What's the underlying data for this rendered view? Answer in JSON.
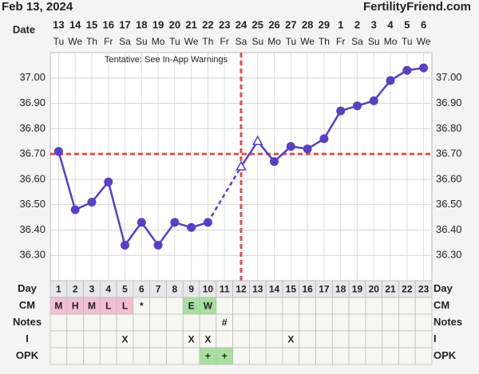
{
  "chart_data": {
    "type": "line",
    "title": "Feb 13, 2024",
    "brand": "FertilityFriend.com",
    "date_label": "Date",
    "categories": [
      "13",
      "14",
      "15",
      "16",
      "17",
      "18",
      "19",
      "20",
      "21",
      "22",
      "23",
      "24",
      "25",
      "26",
      "27",
      "28",
      "29",
      "1",
      "2",
      "3",
      "4",
      "5",
      "6"
    ],
    "weekdays": [
      "Tu",
      "We",
      "Th",
      "Fr",
      "Sa",
      "Su",
      "Mo",
      "Tu",
      "We",
      "Th",
      "Fr",
      "Sa",
      "Su",
      "Mo",
      "Tu",
      "We",
      "Th",
      "Fr",
      "Sa",
      "Su",
      "Mo",
      "Tu",
      "We"
    ],
    "values": [
      36.71,
      36.48,
      36.51,
      36.59,
      36.34,
      36.43,
      36.34,
      36.43,
      36.41,
      36.43,
      null,
      36.65,
      36.75,
      36.67,
      36.73,
      36.72,
      36.76,
      36.87,
      36.89,
      36.91,
      36.99,
      37.03,
      37.04
    ],
    "color": "#5a3fc0",
    "open_markers": [
      11,
      12
    ],
    "gaps_dashed": true,
    "coverline": 36.7,
    "ovulation_index": 11,
    "marker_line_color": "#d9534f",
    "annotation": "Tentative: See In-App Warnings",
    "ylim": [
      36.2,
      37.1
    ],
    "yticks": [
      {
        "value": 36.3,
        "label": "36.30"
      },
      {
        "value": 36.4,
        "label": "36.40"
      },
      {
        "value": 36.5,
        "label": "36.50"
      },
      {
        "value": 36.6,
        "label": "36.60"
      },
      {
        "value": 36.7,
        "label": "36.70"
      },
      {
        "value": 36.8,
        "label": "36.80"
      },
      {
        "value": 36.9,
        "label": "36.90"
      },
      {
        "value": 37,
        "label": "37.00"
      }
    ],
    "grid": true
  },
  "table": {
    "row_labels": [
      "Day",
      "CM",
      "Notes",
      "I",
      "OPK"
    ],
    "rows": [
      [
        "1",
        "2",
        "3",
        "4",
        "5",
        "6",
        "7",
        "8",
        "9",
        "10",
        "11",
        "12",
        "13",
        "14",
        "15",
        "16",
        "17",
        "18",
        "19",
        "20",
        "21",
        "22",
        "23"
      ],
      [
        "M",
        "H",
        "M",
        "L",
        "L",
        "*",
        null,
        null,
        "E",
        "W",
        null,
        null,
        null,
        null,
        null,
        null,
        null,
        null,
        null,
        null,
        null,
        null,
        null
      ],
      [
        null,
        null,
        null,
        null,
        null,
        null,
        null,
        null,
        null,
        null,
        "#",
        null,
        null,
        null,
        null,
        null,
        null,
        null,
        null,
        null,
        null,
        null,
        null
      ],
      [
        null,
        null,
        null,
        null,
        "X",
        null,
        null,
        null,
        "X",
        "X",
        null,
        null,
        null,
        null,
        "X",
        null,
        null,
        null,
        null,
        null,
        null,
        null,
        null
      ],
      [
        null,
        null,
        null,
        null,
        null,
        null,
        null,
        null,
        null,
        "+",
        "+",
        null,
        null,
        null,
        null,
        null,
        null,
        null,
        null,
        null,
        null,
        null,
        null
      ]
    ],
    "cell_colors": {
      "M": "#f2bfd5",
      "H": "#f2bfd5",
      "L": "#f2bfd5",
      "E": "#a8e0a0",
      "W": "#a8e0a0",
      "+": "#a8e0a0"
    }
  }
}
